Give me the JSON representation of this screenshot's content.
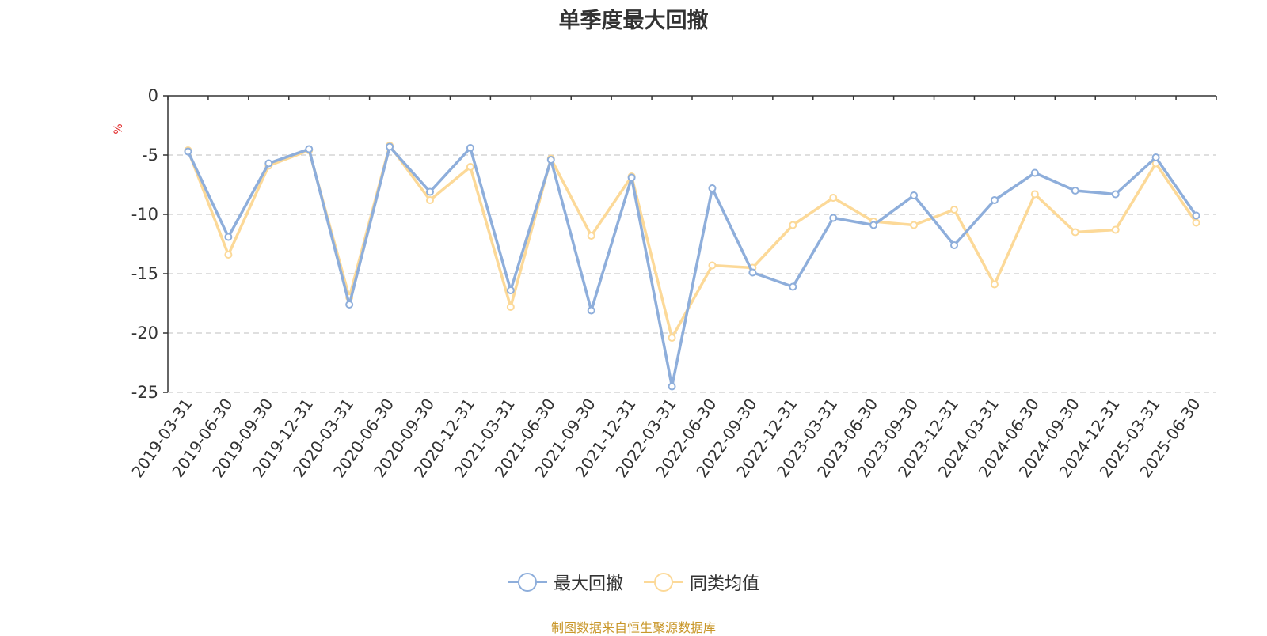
{
  "chart_data": {
    "type": "line",
    "title": "单季度最大回撤",
    "ylabel": "%",
    "xlabel": "",
    "ylim": [
      -25,
      0
    ],
    "yticks": [
      0,
      -5,
      -10,
      -15,
      -20,
      -25
    ],
    "grid": true,
    "legend_position": "bottom-center",
    "x": [
      "2019-03-31",
      "2019-06-30",
      "2019-09-30",
      "2019-12-31",
      "2020-03-31",
      "2020-06-30",
      "2020-09-30",
      "2020-12-31",
      "2021-03-31",
      "2021-06-30",
      "2021-09-30",
      "2021-12-31",
      "2022-03-31",
      "2022-06-30",
      "2022-09-30",
      "2022-12-31",
      "2023-03-31",
      "2023-06-30",
      "2023-09-30",
      "2023-12-31",
      "2024-03-31",
      "2024-06-30",
      "2024-09-30",
      "2024-12-31",
      "2025-03-31",
      "2025-06-30"
    ],
    "series": [
      {
        "name": "最大回撤",
        "color": "#8eaedb",
        "values": [
          -4.7,
          -11.9,
          -5.7,
          -4.5,
          -17.6,
          -4.3,
          -8.1,
          -4.4,
          -16.4,
          -5.4,
          -18.1,
          -6.9,
          -24.5,
          -7.8,
          -14.9,
          -16.1,
          -10.3,
          -10.9,
          -8.4,
          -12.6,
          -8.8,
          -6.5,
          -8.0,
          -8.3,
          -5.2,
          -10.1
        ]
      },
      {
        "name": "同类均值",
        "color": "#fcd998",
        "values": [
          -4.6,
          -13.4,
          -5.9,
          -4.6,
          -17.0,
          -4.2,
          -8.8,
          -6.0,
          -17.8,
          -5.3,
          -11.8,
          -6.8,
          -20.4,
          -14.3,
          -14.5,
          -10.9,
          -8.6,
          -10.6,
          -10.9,
          -9.6,
          -15.9,
          -8.3,
          -11.5,
          -11.3,
          -5.7,
          -10.7
        ]
      }
    ]
  },
  "source_note": "制图数据来自恒生聚源数据库"
}
